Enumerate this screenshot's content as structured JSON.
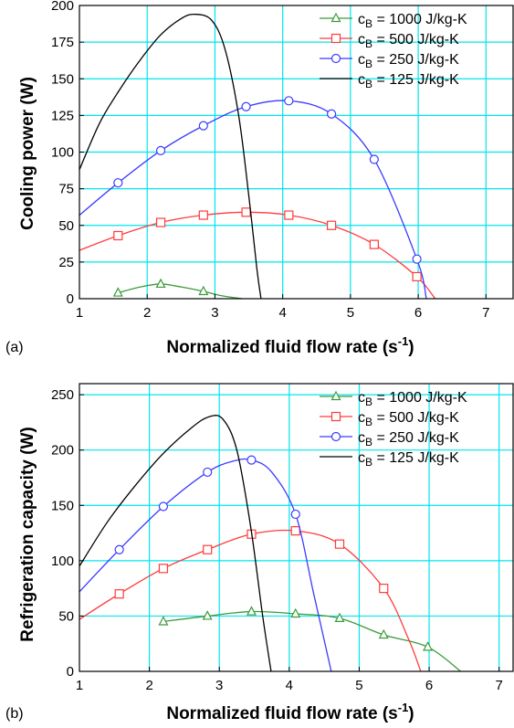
{
  "colors": {
    "grid": "#00e5ee",
    "s1000": "#3a9b3a",
    "s500": "#ff3b3b",
    "s250": "#3b3bff",
    "s125": "#000000"
  },
  "chart_data": [
    {
      "type": "line",
      "panel_label": "(a)",
      "xlabel": "Normalized fluid flow rate (s-1)",
      "xlabel_main": "Normalized fluid flow rate (s",
      "xlabel_sup": "-1",
      "xlabel_close": ")",
      "ylabel": "Cooling power (W)",
      "xlim": [
        1,
        7.4
      ],
      "ylim": [
        0,
        200
      ],
      "xticks": [
        1,
        2,
        3,
        4,
        5,
        6,
        7
      ],
      "yticks": [
        0,
        25,
        50,
        75,
        100,
        125,
        150,
        175,
        200
      ],
      "grid": true,
      "legend_position": "top-right",
      "series": [
        {
          "name": "cB = 1000 J/kg-K",
          "label_main": "c",
          "label_sub": "B",
          "label_rest": " = 1000 J/kg-K",
          "color_key": "s1000",
          "marker": "triangle",
          "x": [
            1.57,
            1.9,
            2.2,
            2.5,
            2.83,
            3.1,
            3.4
          ],
          "y": [
            4,
            8,
            10,
            8,
            5,
            2,
            0
          ],
          "marker_x": [
            1.57,
            2.2,
            2.83
          ]
        },
        {
          "name": "cB = 500 J/kg-K",
          "label_main": "c",
          "label_sub": "B",
          "label_rest": " = 500 J/kg-K",
          "color_key": "s500",
          "marker": "square",
          "x": [
            1.0,
            1.57,
            2.2,
            2.83,
            3.46,
            4.09,
            4.72,
            5.35,
            5.98,
            6.25
          ],
          "y": [
            33,
            43,
            52,
            57,
            59,
            57,
            50,
            37,
            15,
            0
          ],
          "marker_x": [
            1.57,
            2.2,
            2.83,
            3.46,
            4.09,
            4.72,
            5.35,
            5.98
          ]
        },
        {
          "name": "cB = 250 J/kg-K",
          "label_main": "c",
          "label_sub": "B",
          "label_rest": " = 250 J/kg-K",
          "color_key": "s250",
          "marker": "circle",
          "x": [
            1.0,
            1.57,
            2.2,
            2.83,
            3.46,
            4.09,
            4.72,
            5.35,
            5.98,
            6.12
          ],
          "y": [
            57,
            79,
            101,
            118,
            131,
            135,
            126,
            95,
            27,
            0
          ],
          "marker_x": [
            1.57,
            2.2,
            2.83,
            3.46,
            4.09,
            4.72,
            5.35,
            5.98
          ]
        },
        {
          "name": "cB = 125 J/kg-K",
          "label_main": "c",
          "label_sub": "B",
          "label_rest": " = 125 J/kg-K",
          "color_key": "s125",
          "marker": "none",
          "x": [
            1.0,
            1.3,
            1.6,
            1.9,
            2.2,
            2.5,
            2.7,
            2.95,
            3.15,
            3.35,
            3.5,
            3.62,
            3.68
          ],
          "y": [
            88,
            120,
            143,
            163,
            180,
            191,
            194,
            190,
            170,
            125,
            70,
            20,
            0
          ],
          "marker_x": []
        }
      ]
    },
    {
      "type": "line",
      "panel_label": "(b)",
      "xlabel": "Normalized fluid flow rate (s-1)",
      "xlabel_main": "Normalized fluid flow rate (s",
      "xlabel_sup": "-1",
      "xlabel_close": ")",
      "ylabel": "Refrigeration capacity (W)",
      "xlim": [
        1,
        7.2
      ],
      "ylim": [
        0,
        260
      ],
      "xticks": [
        1,
        2,
        3,
        4,
        5,
        6,
        7
      ],
      "yticks": [
        0,
        50,
        100,
        150,
        200,
        250
      ],
      "grid": true,
      "legend_position": "top-right",
      "series": [
        {
          "name": "cB = 1000 J/kg-K",
          "label_main": "c",
          "label_sub": "B",
          "label_rest": " = 1000 J/kg-K",
          "color_key": "s1000",
          "marker": "triangle",
          "x": [
            2.2,
            2.83,
            3.46,
            4.09,
            4.72,
            5.35,
            5.98,
            6.45
          ],
          "y": [
            45,
            50,
            54,
            52,
            48,
            33,
            22,
            0
          ],
          "marker_x": [
            2.2,
            2.83,
            3.46,
            4.09,
            4.72,
            5.35,
            5.98
          ]
        },
        {
          "name": "cB = 500 J/kg-K",
          "label_main": "c",
          "label_sub": "B",
          "label_rest": " = 500 J/kg-K",
          "color_key": "s500",
          "marker": "square",
          "x": [
            1.0,
            1.57,
            2.2,
            2.83,
            3.46,
            4.09,
            4.72,
            5.35,
            5.7,
            5.88
          ],
          "y": [
            47,
            70,
            93,
            110,
            124,
            127,
            115,
            75,
            30,
            0
          ],
          "marker_x": [
            1.57,
            2.2,
            2.83,
            3.46,
            4.09,
            4.72,
            5.35
          ]
        },
        {
          "name": "cB = 250 J/kg-K",
          "label_main": "c",
          "label_sub": "B",
          "label_rest": " = 250 J/kg-K",
          "color_key": "s250",
          "marker": "circle",
          "x": [
            1.0,
            1.57,
            2.2,
            2.83,
            3.2,
            3.46,
            3.75,
            4.09,
            4.35,
            4.6
          ],
          "y": [
            72,
            110,
            149,
            180,
            190,
            191,
            180,
            142,
            70,
            0
          ],
          "marker_x": [
            1.57,
            2.2,
            2.83,
            3.46,
            4.09
          ]
        },
        {
          "name": "cB = 125 J/kg-K",
          "label_main": "c",
          "label_sub": "B",
          "label_rest": " = 125 J/kg-K",
          "color_key": "s125",
          "marker": "none",
          "x": [
            1.0,
            1.4,
            1.8,
            2.2,
            2.6,
            2.85,
            3.05,
            3.25,
            3.45,
            3.62,
            3.74
          ],
          "y": [
            95,
            135,
            168,
            197,
            220,
            230,
            228,
            200,
            130,
            50,
            0
          ],
          "marker_x": []
        }
      ]
    }
  ]
}
